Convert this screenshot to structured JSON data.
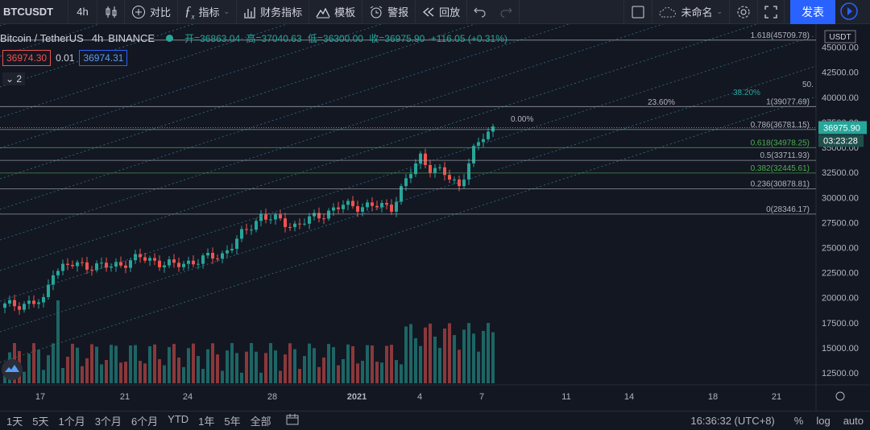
{
  "toolbar": {
    "symbol": "BTCUSDT",
    "interval": "4h",
    "compare": "对比",
    "indicators": "指标",
    "financials": "财务指标",
    "templates": "模板",
    "alert": "警报",
    "replay": "回放",
    "layout_name": "未命名",
    "publish": "发表"
  },
  "legend": {
    "title": "Bitcoin / TetherUS",
    "interval": "4h",
    "exchange": "BINANCE",
    "open": "开=36863.04",
    "high": "高=37040.63",
    "low": "低=36300.00",
    "close": "收=36975.90",
    "change": "+116.05 (+0.31%)"
  },
  "price_boxes": {
    "sell": "36974.30",
    "spread": "0.01",
    "buy": "36974.31"
  },
  "collapse_count": "2",
  "axis": {
    "currency": "USDT",
    "current_price": "36975.90",
    "countdown": "03:23:28"
  },
  "fib_levels": [
    {
      "label": "1.618(45709.78)",
      "value": 45709.78,
      "color": "#b2b5be"
    },
    {
      "label": "1(39077.69)",
      "value": 39077.69,
      "color": "#b2b5be"
    },
    {
      "label": "0.786(36781.15)",
      "value": 36781.15,
      "color": "#b2b5be"
    },
    {
      "label": "0.618(34978.25)",
      "value": 34978.25,
      "color": "#4caf50"
    },
    {
      "label": "0.5(33711.93)",
      "value": 33711.93,
      "color": "#b2b5be"
    },
    {
      "label": "0.382(32445.61)",
      "value": 32445.61,
      "color": "#4caf50"
    },
    {
      "label": "0.236(30878.81)",
      "value": 30878.81,
      "color": "#b2b5be"
    },
    {
      "label": "0(28346.17)",
      "value": 28346.17,
      "color": "#b2b5be"
    }
  ],
  "fan_labels": [
    {
      "text": "0.00%",
      "color": "#b2b5be"
    },
    {
      "text": "23.60%",
      "color": "#b2b5be"
    },
    {
      "text": "38.20%",
      "color": "#26a69a"
    },
    {
      "text": "50.",
      "color": "#b2b5be"
    }
  ],
  "chart_data": {
    "type": "candlestick",
    "y_ticks": [
      45000,
      42500,
      40000,
      37500,
      35000,
      32500,
      30000,
      27500,
      25000,
      22500,
      20000,
      17500,
      15000,
      12500
    ],
    "y_tick_labels": [
      "45000.00",
      "42500.00",
      "40000.00",
      "37500.00",
      "35000.00",
      "32500.00",
      "30000.00",
      "27500.00",
      "25000.00",
      "22500.00",
      "20000.00",
      "17500.00",
      "15000.00",
      "12500.00"
    ],
    "ylim": [
      11300,
      47300
    ],
    "x_ticks": [
      "17",
      "21",
      "24",
      "28",
      "2021",
      "4",
      "7",
      "11",
      "14",
      "18",
      "21"
    ],
    "bar_count": 102
  },
  "bottom": {
    "ranges": [
      "1天",
      "5天",
      "1个月",
      "3个月",
      "6个月",
      "YTD",
      "1年",
      "5年",
      "全部"
    ],
    "time": "16:36:32 (UTC+8)",
    "percent": "%",
    "log": "log",
    "auto": "auto"
  }
}
